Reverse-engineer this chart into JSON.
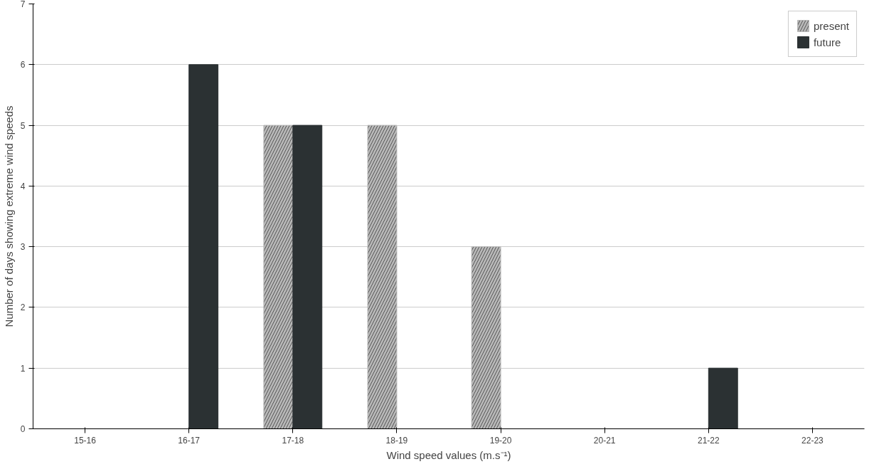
{
  "chart_data": {
    "type": "bar",
    "xlabel": "Wind speed values (m.s⁻¹)",
    "ylabel": "Number of days showing extreme wind speeds",
    "categories": [
      "15-16",
      "16-17",
      "17-18",
      "18-19",
      "19-20",
      "20-21",
      "21-22",
      "22-23"
    ],
    "series": [
      {
        "name": "present",
        "color": "#b8b8b8",
        "values": [
          0,
          0,
          5,
          5,
          3,
          0,
          0,
          0
        ]
      },
      {
        "name": "future",
        "color": "#2b3133",
        "values": [
          0,
          6,
          5,
          0,
          0,
          0,
          1,
          0
        ]
      }
    ],
    "ylim": [
      0,
      7
    ],
    "yticks": [
      0,
      1,
      2,
      3,
      4,
      5,
      6,
      7
    ],
    "grid": "y",
    "legend": "top right"
  }
}
